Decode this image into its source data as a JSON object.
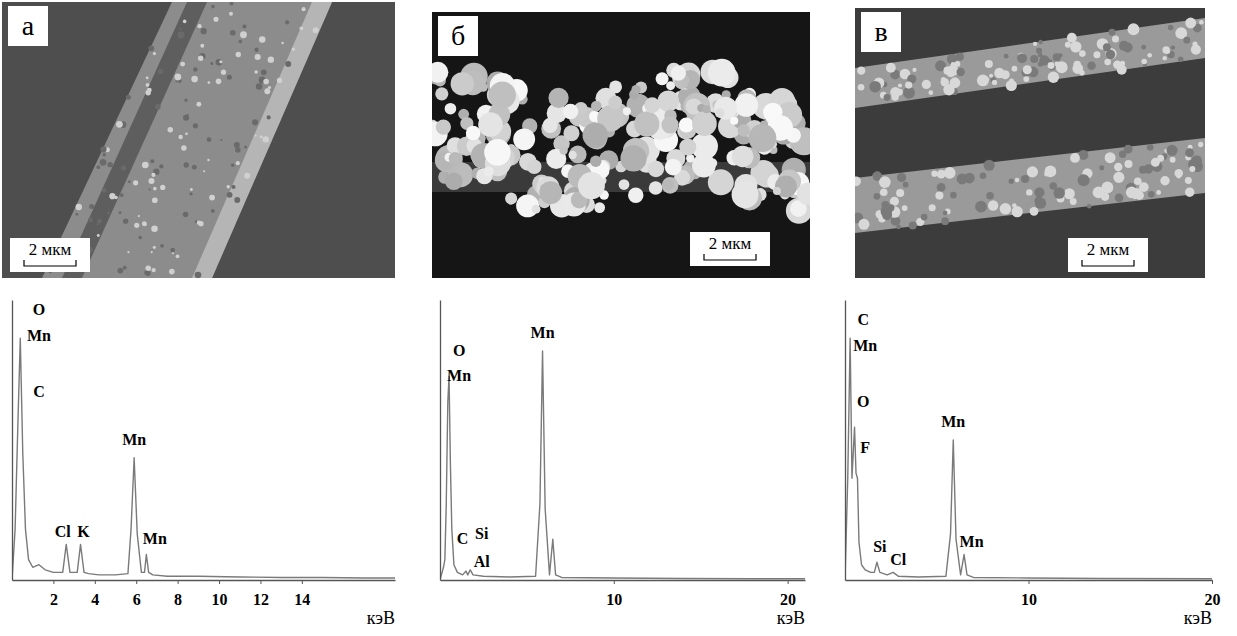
{
  "images": [
    {
      "label": "а",
      "scale_bar": "2 мкм"
    },
    {
      "label": "б",
      "scale_bar": "2 мкм"
    },
    {
      "label": "в",
      "scale_bar": "2 мкм"
    }
  ],
  "chart_data": [
    {
      "type": "line",
      "color": "#7a7a7a",
      "x_label": "кэВ",
      "grid": false,
      "tick_labels": "x",
      "xlim": [
        0,
        18.5
      ],
      "xticks": [
        2,
        4,
        6,
        8,
        10,
        12,
        14
      ],
      "ylim": [
        0,
        110
      ],
      "x": [
        0,
        0.15,
        0.28,
        0.4,
        0.52,
        0.65,
        0.8,
        1.0,
        1.3,
        1.6,
        2.0,
        2.45,
        2.62,
        2.8,
        3.0,
        3.15,
        3.31,
        3.48,
        3.7,
        4.2,
        5.0,
        5.6,
        5.75,
        5.9,
        6.05,
        6.25,
        6.4,
        6.49,
        6.6,
        6.8,
        7.5,
        9,
        11,
        13,
        15,
        17,
        18.5
      ],
      "values": [
        0,
        20,
        60,
        95,
        50,
        20,
        8,
        5,
        6,
        4,
        3,
        3,
        14,
        3,
        3,
        3,
        14,
        3,
        2.5,
        2,
        2,
        2.5,
        20,
        48,
        18,
        3,
        3,
        10,
        3,
        2,
        1.5,
        1.5,
        1.2,
        1,
        1,
        0.8,
        0.8
      ],
      "annotations": [
        {
          "text": "O",
          "x": 1.3,
          "y": 104
        },
        {
          "text": "Mn",
          "x": 1.3,
          "y": 94
        },
        {
          "text": "C",
          "x": 1.3,
          "y": 72
        },
        {
          "text": "Cl",
          "x": 2.45,
          "y": 17
        },
        {
          "text": "K",
          "x": 3.45,
          "y": 17
        },
        {
          "text": "Mn",
          "x": 5.9,
          "y": 53
        },
        {
          "text": "Mn",
          "x": 6.9,
          "y": 14
        }
      ]
    },
    {
      "type": "line",
      "color": "#7a7a7a",
      "x_label": "кэВ",
      "grid": false,
      "tick_labels": "x",
      "xlim": [
        0,
        21
      ],
      "xticks": [
        10,
        20
      ],
      "ylim": [
        0,
        110
      ],
      "x": [
        0,
        0.2,
        0.28,
        0.36,
        0.45,
        0.52,
        0.6,
        0.68,
        0.8,
        1.0,
        1.3,
        1.49,
        1.6,
        1.74,
        1.9,
        2.5,
        4,
        5.5,
        5.75,
        5.9,
        6.05,
        6.3,
        6.49,
        6.65,
        7,
        10,
        14,
        18,
        21
      ],
      "values": [
        0,
        5,
        8,
        30,
        70,
        80,
        45,
        20,
        6,
        3,
        2,
        3.5,
        2,
        4,
        2,
        1.5,
        1.2,
        1.5,
        30,
        90,
        28,
        2,
        16,
        2,
        1,
        0.8,
        0.6,
        0.5,
        0.5
      ],
      "annotations": [
        {
          "text": "O",
          "x": 1.1,
          "y": 88
        },
        {
          "text": "Mn",
          "x": 1.1,
          "y": 78
        },
        {
          "text": "C",
          "x": 1.3,
          "y": 14
        },
        {
          "text": "Si",
          "x": 2.4,
          "y": 16
        },
        {
          "text": "Al",
          "x": 2.4,
          "y": 5
        },
        {
          "text": "Mn",
          "x": 5.9,
          "y": 95
        }
      ]
    },
    {
      "type": "line",
      "color": "#7a7a7a",
      "x_label": "кэВ",
      "grid": false,
      "tick_labels": "x",
      "xlim": [
        0,
        20
      ],
      "xticks": [
        10,
        20
      ],
      "ylim": [
        0,
        110
      ],
      "x": [
        0,
        0.15,
        0.28,
        0.38,
        0.45,
        0.52,
        0.6,
        0.68,
        0.76,
        0.9,
        1.1,
        1.4,
        1.6,
        1.74,
        1.9,
        2.3,
        2.62,
        2.9,
        4,
        5.5,
        5.75,
        5.9,
        6.05,
        6.3,
        6.49,
        6.65,
        7,
        10,
        14,
        20
      ],
      "values": [
        0,
        40,
        95,
        40,
        50,
        60,
        42,
        40,
        15,
        6,
        4,
        3,
        3,
        7,
        3,
        2,
        3,
        1.5,
        1.2,
        1.5,
        18,
        55,
        16,
        2,
        10,
        2,
        1,
        0.8,
        0.6,
        0.5
      ],
      "annotations": [
        {
          "text": "C",
          "x": 1.0,
          "y": 100
        },
        {
          "text": "Mn",
          "x": 1.1,
          "y": 90
        },
        {
          "text": "O",
          "x": 1.0,
          "y": 68
        },
        {
          "text": "F",
          "x": 1.1,
          "y": 50
        },
        {
          "text": "Si",
          "x": 1.9,
          "y": 11
        },
        {
          "text": "Cl",
          "x": 2.9,
          "y": 6
        },
        {
          "text": "Mn",
          "x": 5.9,
          "y": 60
        },
        {
          "text": "Mn",
          "x": 6.9,
          "y": 13
        }
      ]
    }
  ]
}
